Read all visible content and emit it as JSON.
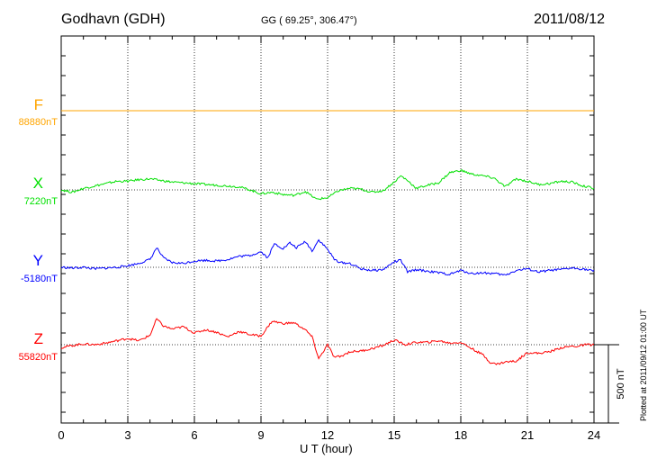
{
  "header": {
    "station": "Godhavn (GDH)",
    "coords": "GG ( 69.25°, 306.47°)",
    "date": "2011/08/12",
    "plotted": "Plotted at 2011/09/12 01:00 UT"
  },
  "colors": {
    "F": "#ffa500",
    "X": "#00e000",
    "Y": "#0000ff",
    "Z": "#ff0000"
  },
  "chart_data": {
    "type": "line",
    "xlabel": "U T (hour)",
    "xlim": [
      0,
      24
    ],
    "x_ticks": [
      0,
      3,
      6,
      9,
      12,
      15,
      18,
      21,
      24
    ],
    "scale_bar": {
      "label": "500 nT",
      "value_nT": 500
    },
    "series": [
      {
        "name": "F",
        "baseline_label": "88880nT",
        "color": "#ffa500",
        "x": [
          0,
          24
        ],
        "values": [
          0,
          0
        ]
      },
      {
        "name": "X",
        "baseline_label": "7220nT",
        "color": "#00e000",
        "x": [
          0,
          0.5,
          1,
          1.5,
          2,
          2.5,
          3,
          3.5,
          4,
          4.5,
          5,
          5.5,
          6,
          6.5,
          7,
          7.5,
          8,
          8.5,
          9,
          9.5,
          10,
          10.5,
          11,
          11.5,
          12,
          12.5,
          13,
          13.5,
          14,
          14.5,
          15,
          15.3,
          15.6,
          16,
          16.5,
          17,
          17.5,
          18,
          18.5,
          19,
          19.5,
          20,
          20.5,
          21,
          21.5,
          22,
          22.5,
          23,
          23.5,
          24
        ],
        "values": [
          0,
          -15,
          10,
          25,
          40,
          55,
          55,
          65,
          70,
          60,
          50,
          45,
          40,
          35,
          30,
          25,
          20,
          0,
          -25,
          -15,
          -30,
          -35,
          -10,
          -60,
          -50,
          -5,
          10,
          5,
          -15,
          -5,
          50,
          90,
          60,
          10,
          30,
          45,
          110,
          125,
          100,
          90,
          75,
          20,
          70,
          55,
          35,
          40,
          55,
          50,
          25,
          10
        ]
      },
      {
        "name": "Y",
        "baseline_label": "-5180nT",
        "color": "#0000ff",
        "x": [
          0,
          0.5,
          1,
          1.5,
          2,
          2.5,
          3,
          3.5,
          4,
          4.3,
          4.6,
          5,
          5.5,
          6,
          6.5,
          7,
          7.5,
          8,
          8.5,
          9,
          9.3,
          9.6,
          10,
          10.3,
          10.6,
          11,
          11.3,
          11.6,
          12,
          12.3,
          12.6,
          13,
          13.5,
          14,
          14.5,
          15,
          15.3,
          15.6,
          16,
          16.5,
          17,
          17.5,
          18,
          18.5,
          19,
          19.5,
          20,
          20.5,
          21,
          21.5,
          22,
          22.5,
          23,
          23.5,
          24
        ],
        "values": [
          0,
          -5,
          0,
          -10,
          -5,
          0,
          10,
          25,
          50,
          125,
          60,
          30,
          25,
          40,
          45,
          40,
          50,
          70,
          75,
          100,
          60,
          150,
          120,
          155,
          125,
          165,
          105,
          175,
          115,
          50,
          30,
          25,
          -10,
          -20,
          -15,
          35,
          45,
          -30,
          -15,
          -25,
          -35,
          -45,
          -20,
          -40,
          -35,
          -40,
          -50,
          -20,
          -10,
          -30,
          -20,
          -15,
          -5,
          -10,
          -25
        ]
      },
      {
        "name": "Z",
        "baseline_label": "55820nT",
        "color": "#ff0000",
        "x": [
          0,
          0.5,
          1,
          1.5,
          2,
          2.5,
          3,
          3.5,
          4,
          4.3,
          4.6,
          5,
          5.5,
          6,
          6.5,
          7,
          7.5,
          8,
          8.5,
          9,
          9.5,
          10,
          10.5,
          11,
          11.3,
          11.6,
          12,
          12.3,
          12.6,
          13,
          13.5,
          14,
          14.5,
          15,
          15.5,
          16,
          16.5,
          17,
          17.5,
          18,
          18.5,
          19,
          19.3,
          19.6,
          20,
          20.5,
          21,
          21.5,
          22,
          22.5,
          23,
          23.3,
          23.6,
          24
        ],
        "values": [
          -20,
          -5,
          5,
          0,
          10,
          25,
          40,
          25,
          60,
          165,
          120,
          100,
          115,
          75,
          95,
          80,
          50,
          85,
          65,
          55,
          150,
          135,
          140,
          95,
          50,
          -90,
          0,
          -80,
          -75,
          -45,
          -40,
          -25,
          -5,
          30,
          0,
          15,
          15,
          25,
          10,
          15,
          -25,
          -65,
          -110,
          -125,
          -110,
          -105,
          -50,
          -55,
          -45,
          -20,
          -10,
          -10,
          0,
          0
        ]
      }
    ]
  }
}
